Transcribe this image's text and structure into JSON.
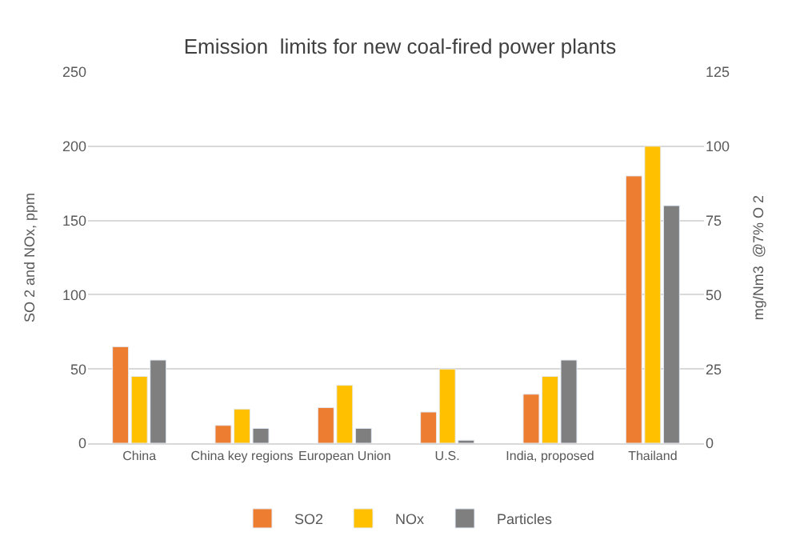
{
  "chart_data": {
    "type": "bar",
    "title": "Emission  limits for new coal-fired power plants",
    "ylabel": "SO 2 and NOx, ppm",
    "y2label": "mg/Nm3  @7% O 2",
    "categories": [
      "China",
      "China key regions",
      "European Union",
      "U.S.",
      "India, proposed",
      "Thailand"
    ],
    "series": [
      {
        "name": "SO2",
        "color": "#ed7d31",
        "values": [
          65,
          12,
          24,
          21,
          33,
          180
        ]
      },
      {
        "name": "NOx",
        "color": "#ffc000",
        "values": [
          45,
          23,
          39,
          50,
          45,
          200
        ]
      },
      {
        "name": "Particles",
        "color": "#7f7f7f",
        "axis": "y2",
        "values": [
          28,
          5,
          5,
          1,
          28,
          80
        ]
      }
    ],
    "ylim": [
      0,
      250
    ],
    "yticks": [
      0,
      50,
      100,
      150,
      200,
      250
    ],
    "y2lim": [
      0,
      125
    ],
    "y2ticks": [
      0,
      25,
      50,
      75,
      100,
      125
    ],
    "grid": "y",
    "legend": "bottom"
  }
}
